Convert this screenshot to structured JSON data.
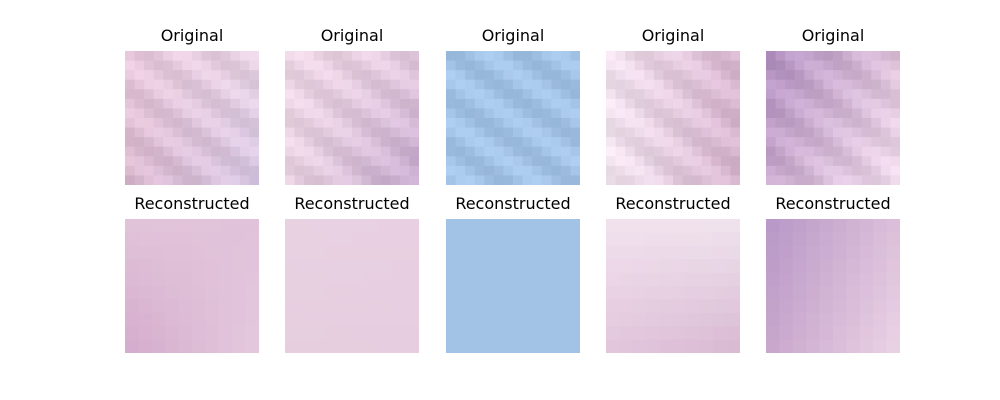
{
  "figure": {
    "rows": [
      {
        "label": "Original",
        "panels": [
          {
            "colors": [
              "#e8c8dc",
              "#e6d2e2",
              "#d8b6cc",
              "#d6c6e2"
            ]
          },
          {
            "colors": [
              "#ecd6e4",
              "#e4cade",
              "#ead4e2",
              "#c4a8cc"
            ]
          },
          {
            "colors": [
              "#a2c2e6",
              "#a0c0e4",
              "#a2c2e6",
              "#a4c3e6"
            ]
          },
          {
            "colors": [
              "#f0e0ec",
              "#d8b6d0",
              "#f2e6f0",
              "#d4b2cc"
            ]
          },
          {
            "colors": [
              "#b08fc0",
              "#dcc0d8",
              "#c8a8cc",
              "#f0dcec"
            ]
          }
        ]
      },
      {
        "label": "Reconstructed",
        "panels": [
          {
            "colors": [
              "#e2c4da",
              "#e0c2da",
              "#d4aacc",
              "#e4cade"
            ]
          },
          {
            "colors": [
              "#e8d2e2",
              "#e8d0e2",
              "#e6cede",
              "#e6cee0"
            ]
          },
          {
            "colors": [
              "#a2c2e6",
              "#a2c2e6",
              "#a2c2e6",
              "#a2c2e6"
            ]
          },
          {
            "colors": [
              "#f2e2ee",
              "#f0e4ee",
              "#e2c6dc",
              "#d8b8d2"
            ]
          },
          {
            "colors": [
              "#b696c6",
              "#dcc0da",
              "#c8a6cc",
              "#ecd4e6"
            ]
          }
        ]
      }
    ]
  }
}
